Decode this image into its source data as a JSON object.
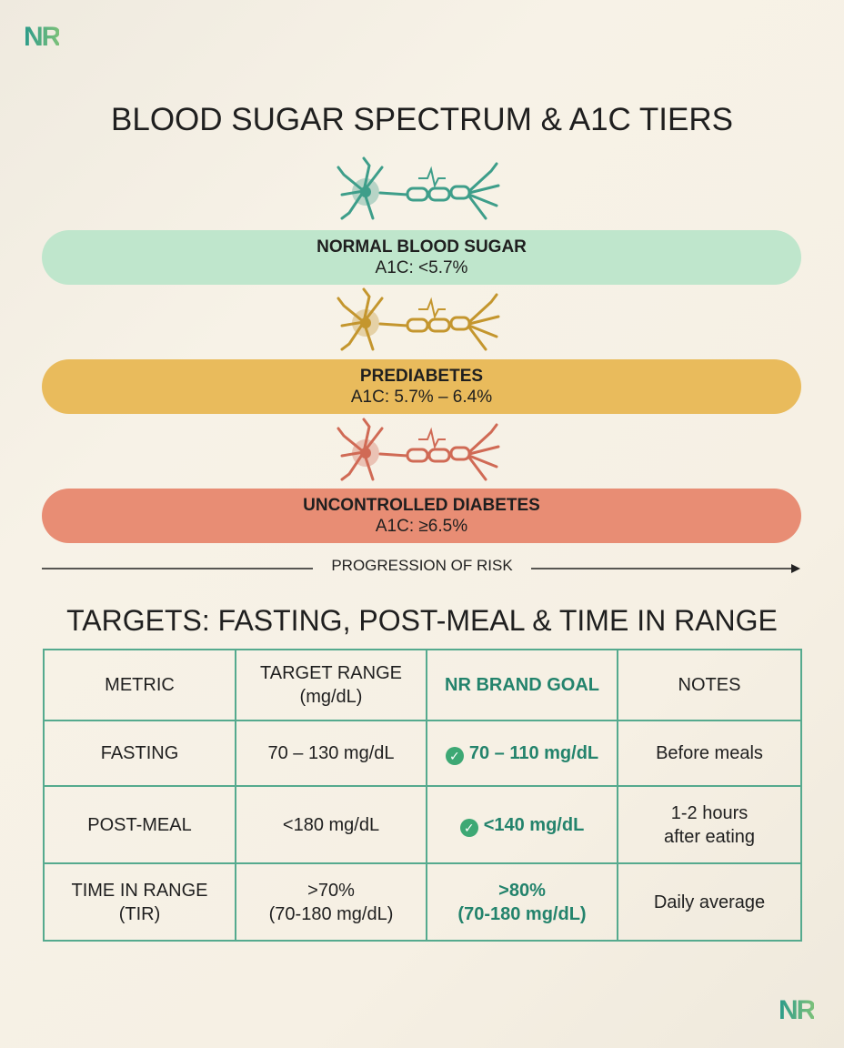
{
  "brand": "NR",
  "title": "BLOOD SUGAR SPECTRUM & A1C TIERS",
  "tiers": [
    {
      "name": "NORMAL BLOOD SUGAR",
      "a1c": "A1C: <5.7%"
    },
    {
      "name": "PREDIABETES",
      "a1c": "A1C: 5.7% – 6.4%"
    },
    {
      "name": "UNCONTROLLED DIABETES",
      "a1c": "A1C: ≥6.5%"
    }
  ],
  "progression_label": "PROGRESSION OF RISK",
  "table": {
    "title": "TARGETS: FASTING, POST-MEAL & TIME IN RANGE",
    "header": [
      "METRIC",
      "TARGET RANGE\n(mg/dL)",
      "NR BRAND GOAL",
      "NOTES"
    ],
    "rows": [
      [
        "FASTING",
        "70 – 130 mg/dL",
        "70 – 110 mg/dL",
        "Before meals"
      ],
      [
        "POST-MEAL",
        "<180 mg/dL",
        "<140 mg/dL",
        "1-2 hours\nafter eating"
      ],
      [
        "TIME IN RANGE\n(TIR)",
        ">70%\n(70-180 mg/dL)",
        ">80%\n(70-180 mg/dL)",
        "Daily average"
      ]
    ]
  }
}
